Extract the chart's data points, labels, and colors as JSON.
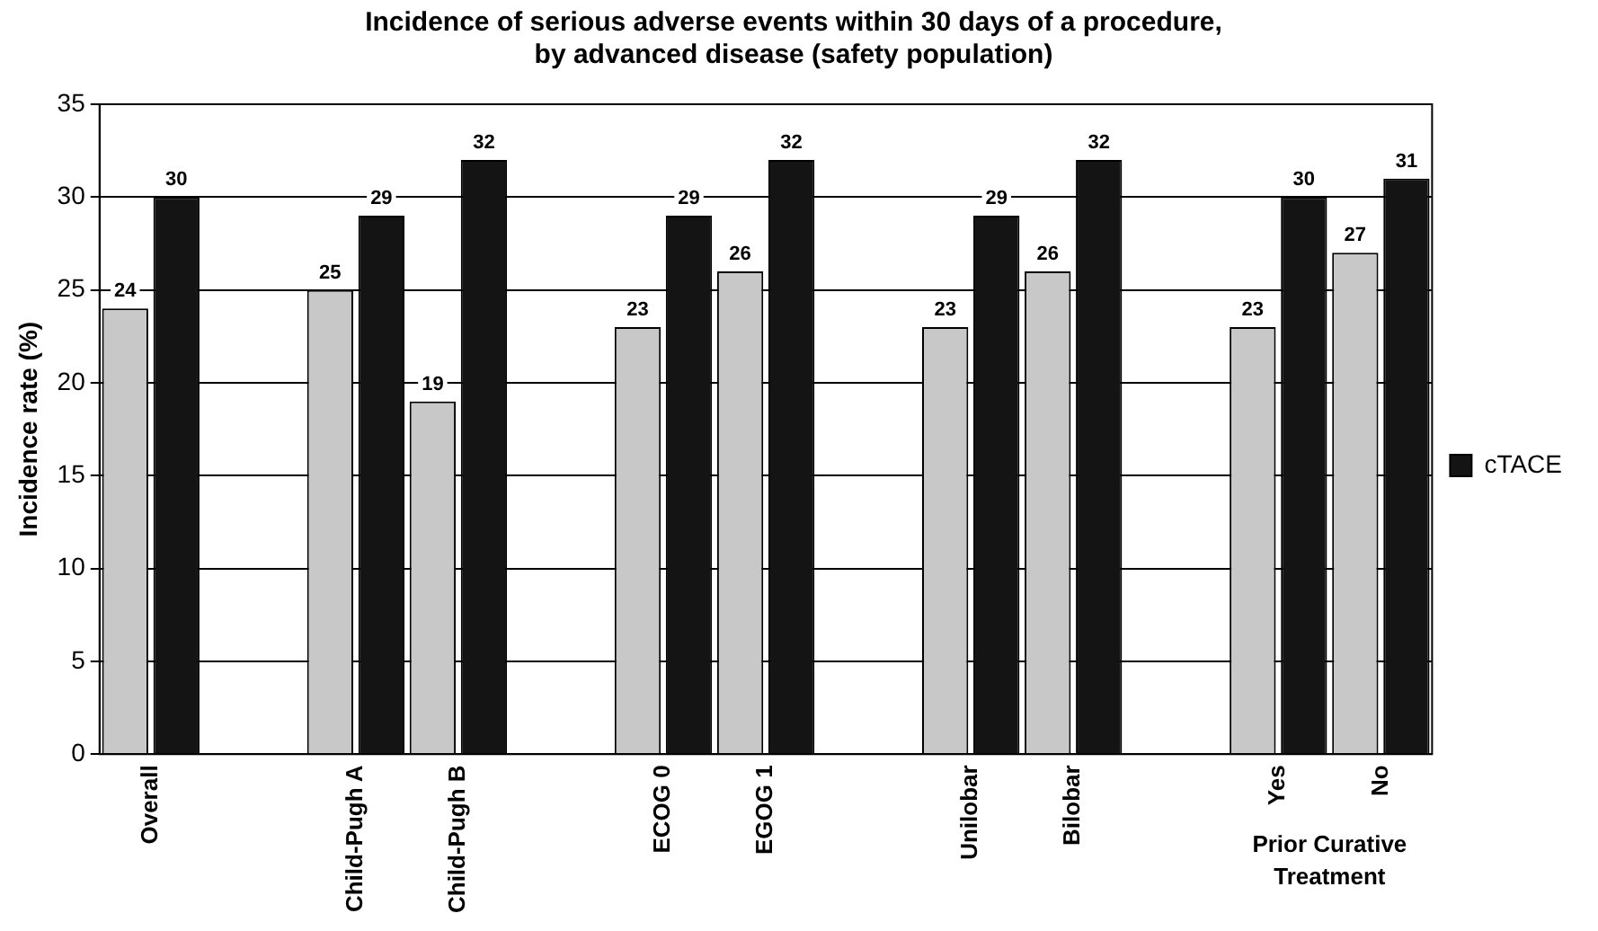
{
  "chart_data": {
    "type": "bar",
    "title": "Incidence of serious adverse events within 30 days of a procedure,\nby advanced disease (safety population)",
    "ylabel": "Incidence rate (%)",
    "categories": [
      "Overall",
      null,
      "Child-Pugh A",
      "Child-Pugh B",
      null,
      "ECOG 0",
      "EGOG 1",
      null,
      "Unilobar",
      "Bilobar",
      null,
      "Yes",
      "No"
    ],
    "series": [
      {
        "color": "#c8c8c8",
        "values": [
          24,
          null,
          25,
          19,
          null,
          23,
          26,
          null,
          23,
          26,
          null,
          23,
          27
        ]
      },
      {
        "name": "cTACE",
        "color": "#141414",
        "values": [
          30,
          null,
          29,
          32,
          null,
          29,
          32,
          null,
          29,
          32,
          null,
          30,
          31
        ]
      }
    ],
    "ylim": [
      0,
      35
    ],
    "yticks": [
      0,
      5,
      10,
      15,
      20,
      25,
      30,
      35
    ],
    "grid": "y",
    "legend": "right",
    "data_labels": true,
    "annotations": [
      "Prior Curative Treatment"
    ]
  }
}
